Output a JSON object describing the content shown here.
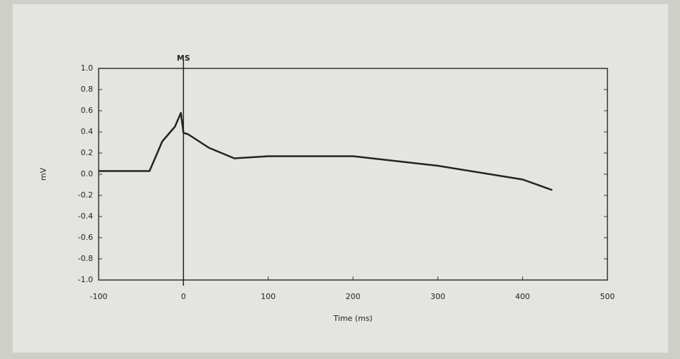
{
  "chart_data": {
    "type": "line",
    "x_label": "Time (ms)",
    "y_label": "mV",
    "marker": {
      "x": 0,
      "label": "MS"
    },
    "x": [
      -100,
      -40,
      -25,
      -10,
      -3,
      0,
      5,
      30,
      60,
      100,
      200,
      300,
      400,
      435
    ],
    "series": [
      {
        "color": "#222222",
        "values": [
          0.03,
          0.03,
          0.31,
          0.45,
          0.58,
          0.39,
          0.38,
          0.25,
          0.15,
          0.17,
          0.17,
          0.08,
          -0.05,
          -0.15
        ]
      }
    ],
    "xlim": [
      -100,
      500
    ],
    "xticks": [
      -100,
      0,
      100,
      200,
      300,
      400,
      500
    ],
    "ylim": [
      -1,
      1
    ],
    "yticks": [
      {
        "value": -1,
        "label": "-1.0"
      },
      {
        "value": -0.8,
        "label": "-0.8"
      },
      {
        "value": -0.6,
        "label": "-0.6"
      },
      {
        "value": -0.4,
        "label": "-0.4"
      },
      {
        "value": -0.2,
        "label": "-0.2"
      },
      {
        "value": 0,
        "label": "0.0"
      },
      {
        "value": 0.2,
        "label": "0.2"
      },
      {
        "value": 0.4,
        "label": "0.4"
      },
      {
        "value": 0.6,
        "label": "0.6"
      },
      {
        "value": 0.8,
        "label": "0.8"
      },
      {
        "value": 1,
        "label": "1.0"
      }
    ],
    "grid": false
  }
}
